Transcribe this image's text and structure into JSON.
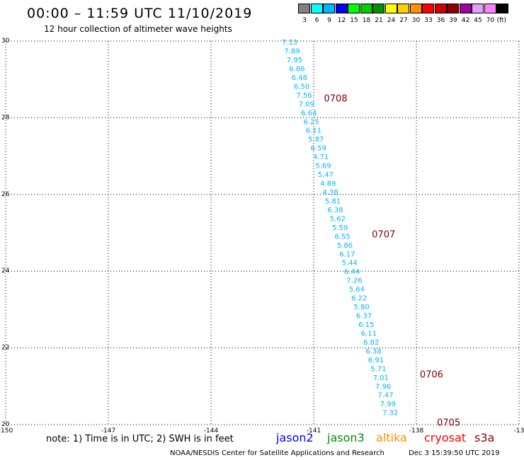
{
  "header": {
    "title": "00:00 – 11:59 UTC 11/10/2019",
    "subtitle": "12 hour collection of altimeter wave heights"
  },
  "legend": {
    "unit": "(ft)",
    "items": [
      {
        "label": "3",
        "color": "#808080"
      },
      {
        "label": "6",
        "color": "#00ffff"
      },
      {
        "label": "9",
        "color": "#00b4ff"
      },
      {
        "label": "12",
        "color": "#0000ff"
      },
      {
        "label": "15",
        "color": "#00ff00"
      },
      {
        "label": "18",
        "color": "#00d000"
      },
      {
        "label": "21",
        "color": "#009000"
      },
      {
        "label": "24",
        "color": "#ffff00"
      },
      {
        "label": "27",
        "color": "#ffd000"
      },
      {
        "label": "30",
        "color": "#ff9000"
      },
      {
        "label": "33",
        "color": "#ff0000"
      },
      {
        "label": "36",
        "color": "#d00000"
      },
      {
        "label": "39",
        "color": "#900000"
      },
      {
        "label": "42",
        "color": "#a000a0"
      },
      {
        "label": "45",
        "color": "#e0a0ff"
      },
      {
        "label": "70",
        "color": "#ff80ff"
      },
      {
        "label": "",
        "color": "#000000"
      }
    ]
  },
  "footer": {
    "note": "note: 1) Time is in UTC; 2) SWH is in feet",
    "satellites": [
      {
        "name": "jason2",
        "color": "#0000ff"
      },
      {
        "name": "jason3",
        "color": "#009000"
      },
      {
        "name": "altika",
        "color": "#ff9000"
      },
      {
        "name": "cryosat",
        "color": "#ff0000"
      },
      {
        "name": "s3a",
        "color": "#900000"
      }
    ],
    "credit": "NOAA/NESDIS Center for Satellite Applications and Research",
    "timestamp": "Dec  3 15:39:50 UTC 2019"
  },
  "chart_data": {
    "type": "scatter",
    "title": "00:00 – 11:59 UTC 11/10/2019",
    "subtitle": "12 hour collection of altimeter wave heights",
    "xlim": [
      -150,
      -135
    ],
    "ylim": [
      20,
      30
    ],
    "x_ticks": [
      "-150",
      "-147",
      "-144",
      "-141",
      "-138",
      "-13"
    ],
    "y_ticks": [
      "20",
      "22",
      "24",
      "26",
      "28",
      "30"
    ],
    "grid": true,
    "series": [
      {
        "point_color": "#00b4ff",
        "points": [
          {
            "lon": -141.7,
            "lat": 29.98,
            "label": "7.13"
          },
          {
            "lon": -141.63,
            "lat": 29.75,
            "label": "7.89"
          },
          {
            "lon": -141.56,
            "lat": 29.52,
            "label": "7.95"
          },
          {
            "lon": -141.49,
            "lat": 29.29,
            "label": "6.86"
          },
          {
            "lon": -141.42,
            "lat": 29.06,
            "label": "6.48"
          },
          {
            "lon": -141.35,
            "lat": 28.83,
            "label": "6.50"
          },
          {
            "lon": -141.28,
            "lat": 28.6,
            "label": "7.56"
          },
          {
            "lon": -141.21,
            "lat": 28.37,
            "label": "7.09"
          },
          {
            "lon": -141.14,
            "lat": 28.14,
            "label": "6.64"
          },
          {
            "lon": -141.07,
            "lat": 27.91,
            "label": "6.25"
          },
          {
            "lon": -141.0,
            "lat": 27.68,
            "label": "6.11"
          },
          {
            "lon": -140.93,
            "lat": 27.45,
            "label": "5.87"
          },
          {
            "lon": -140.86,
            "lat": 27.22,
            "label": "6.59"
          },
          {
            "lon": -140.79,
            "lat": 26.99,
            "label": "4.71"
          },
          {
            "lon": -140.72,
            "lat": 26.76,
            "label": "5.69"
          },
          {
            "lon": -140.65,
            "lat": 26.53,
            "label": "5.47"
          },
          {
            "lon": -140.58,
            "lat": 26.3,
            "label": "4.89"
          },
          {
            "lon": -140.51,
            "lat": 26.07,
            "label": "4.38"
          },
          {
            "lon": -140.44,
            "lat": 25.84,
            "label": "5.81"
          },
          {
            "lon": -140.37,
            "lat": 25.61,
            "label": "6.38"
          },
          {
            "lon": -140.3,
            "lat": 25.38,
            "label": "5.62"
          },
          {
            "lon": -140.23,
            "lat": 25.15,
            "label": "5.59"
          },
          {
            "lon": -140.16,
            "lat": 24.92,
            "label": "6.55"
          },
          {
            "lon": -140.09,
            "lat": 24.69,
            "label": "5.86"
          },
          {
            "lon": -140.02,
            "lat": 24.46,
            "label": "6.17"
          },
          {
            "lon": -139.95,
            "lat": 24.23,
            "label": "5.44"
          },
          {
            "lon": -139.88,
            "lat": 24.0,
            "label": "6.44"
          },
          {
            "lon": -139.81,
            "lat": 23.77,
            "label": "7.26"
          },
          {
            "lon": -139.74,
            "lat": 23.54,
            "label": "5.64"
          },
          {
            "lon": -139.67,
            "lat": 23.31,
            "label": "6.22"
          },
          {
            "lon": -139.6,
            "lat": 23.08,
            "label": "5.80"
          },
          {
            "lon": -139.53,
            "lat": 22.85,
            "label": "6.37"
          },
          {
            "lon": -139.46,
            "lat": 22.62,
            "label": "6.15"
          },
          {
            "lon": -139.39,
            "lat": 22.39,
            "label": "6.11"
          },
          {
            "lon": -139.32,
            "lat": 22.16,
            "label": "6.82"
          },
          {
            "lon": -139.25,
            "lat": 21.93,
            "label": "6.38"
          },
          {
            "lon": -139.18,
            "lat": 21.7,
            "label": "6.91"
          },
          {
            "lon": -139.11,
            "lat": 21.47,
            "label": "5.71"
          },
          {
            "lon": -139.04,
            "lat": 21.24,
            "label": "7.01"
          },
          {
            "lon": -138.97,
            "lat": 21.01,
            "label": "7.96"
          },
          {
            "lon": -138.9,
            "lat": 20.78,
            "label": "7.47"
          },
          {
            "lon": -138.83,
            "lat": 20.55,
            "label": "7.99"
          },
          {
            "lon": -138.76,
            "lat": 20.32,
            "label": "7.32"
          }
        ]
      }
    ],
    "time_labels": [
      {
        "text": "0708",
        "lon": -140.7,
        "lat": 28.5,
        "color": "#800000"
      },
      {
        "text": "0707",
        "lon": -139.3,
        "lat": 24.95,
        "color": "#800000"
      },
      {
        "text": "0706",
        "lon": -137.9,
        "lat": 21.3,
        "color": "#800000"
      },
      {
        "text": "0705",
        "lon": -137.4,
        "lat": 20.05,
        "color": "#800000"
      }
    ]
  }
}
